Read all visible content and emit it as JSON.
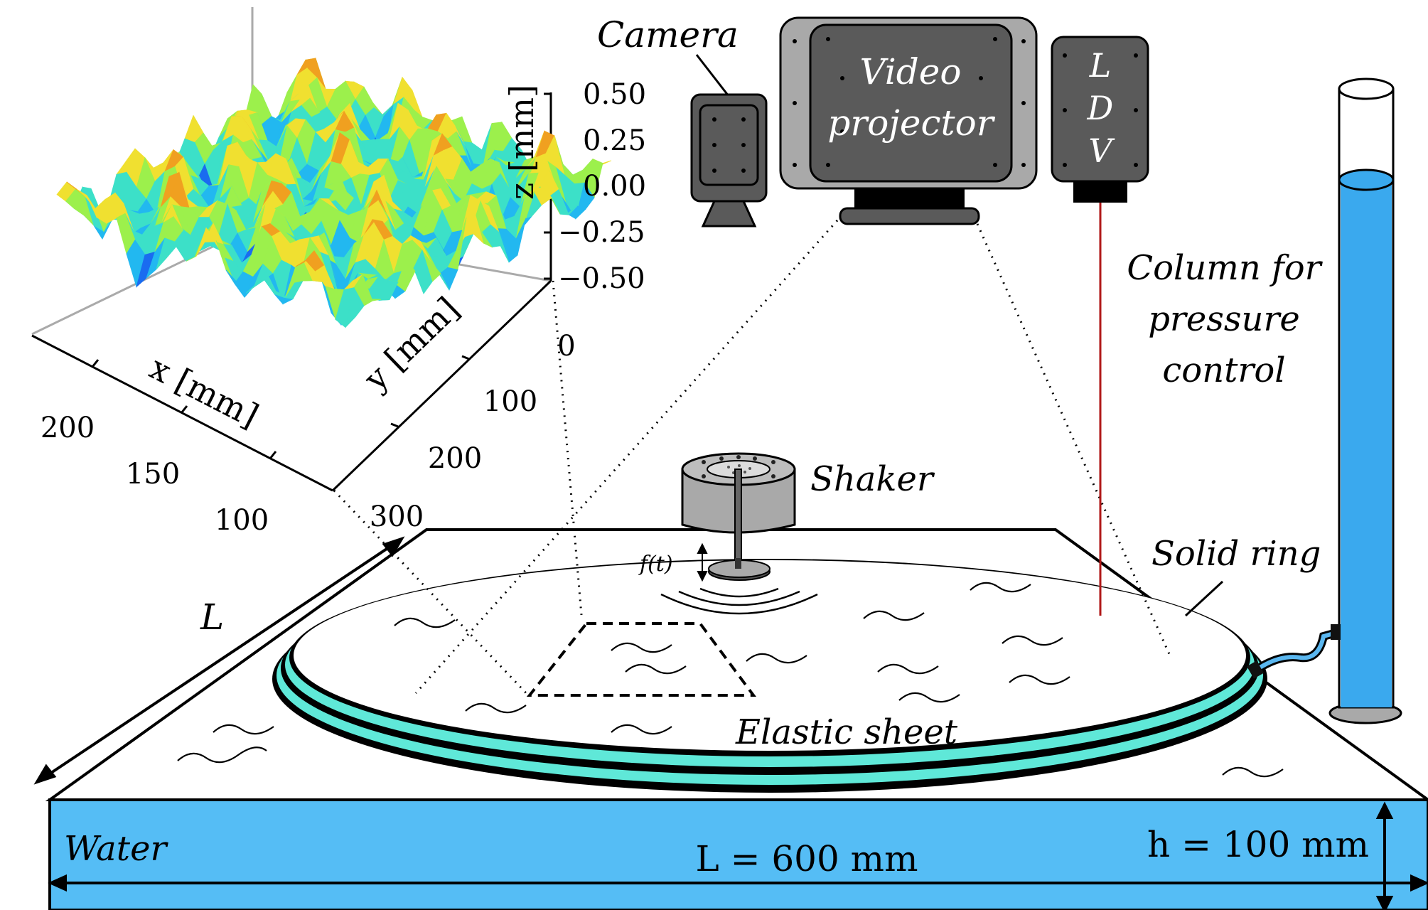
{
  "labels": {
    "camera": "Camera",
    "video_projector_line1": "Video",
    "video_projector_line2": "projector",
    "ldv_l": "L",
    "ldv_d": "D",
    "ldv_v": "V",
    "column_line1": "Column for",
    "column_line2": "pressure",
    "column_line3": "control",
    "shaker": "Shaker",
    "forcing": "f(t)",
    "solid_ring": "Solid ring",
    "elastic_sheet": "Elastic sheet",
    "water": "Water",
    "length_dim": "L = 600 mm",
    "depth_dim": "h = 100 mm",
    "side_L": "L"
  },
  "surface_plot": {
    "x_axis_label": "x [mm]",
    "y_axis_label": "y [mm]",
    "z_axis_label": "z [mm]",
    "x_ticks": [
      "200",
      "150",
      "100"
    ],
    "y_ticks": [
      "0",
      "100",
      "200",
      "300"
    ],
    "z_ticks": [
      "0.50",
      "0.25",
      "0.00",
      "−0.25",
      "−0.50"
    ],
    "colormap": [
      "#1a1adc",
      "#1a6cf0",
      "#22b8f0",
      "#3ce0c8",
      "#9cf04c",
      "#f0e030",
      "#f0a020",
      "#e04018"
    ]
  },
  "colors": {
    "water": "#55bdf5",
    "ring": "#5fe8d8",
    "device_dark": "#5a5a5a",
    "device_light": "#a9a9a9",
    "laser": "#b01818",
    "column_water": "#3aa9ee"
  }
}
